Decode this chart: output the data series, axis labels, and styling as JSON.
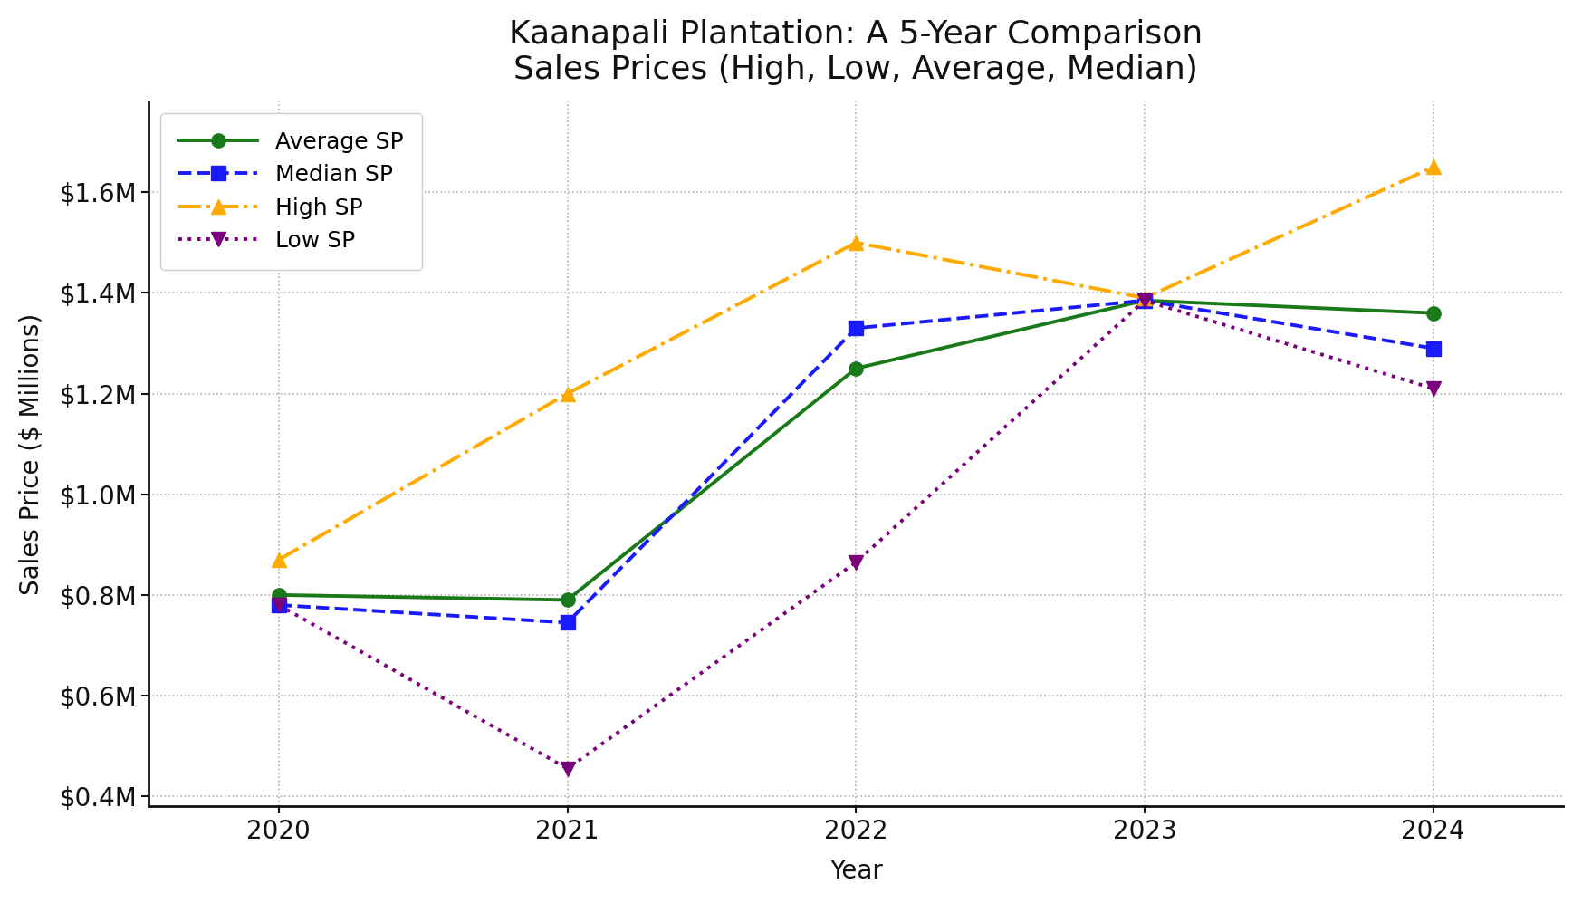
{
  "title": "Kaanapali Plantation: A 5-Year Comparison\nSales Prices (High, Low, Average, Median)",
  "xlabel": "Year",
  "ylabel": "Sales Price ($ Millions)",
  "years": [
    2020,
    2021,
    2022,
    2023,
    2024
  ],
  "average_sp": [
    0.8,
    0.79,
    1.25,
    1.385,
    1.36
  ],
  "median_sp": [
    0.78,
    0.745,
    1.33,
    1.385,
    1.29
  ],
  "high_sp": [
    0.87,
    1.2,
    1.5,
    1.39,
    1.65
  ],
  "low_sp": [
    0.78,
    0.455,
    0.865,
    1.385,
    1.21
  ],
  "average_color": "#1a7a1a",
  "median_color": "#1a1aff",
  "high_color": "#ffaa00",
  "low_color": "#7b007b",
  "background_color": "#ffffff",
  "grid_color": "#b0b0b0",
  "ylim_bottom": 0.38,
  "ylim_top": 1.78,
  "xlim_left": 2019.55,
  "xlim_right": 2024.45,
  "title_fontsize": 26,
  "axis_label_fontsize": 20,
  "tick_fontsize": 20,
  "legend_fontsize": 18,
  "linewidth": 2.8,
  "markersize": 11
}
